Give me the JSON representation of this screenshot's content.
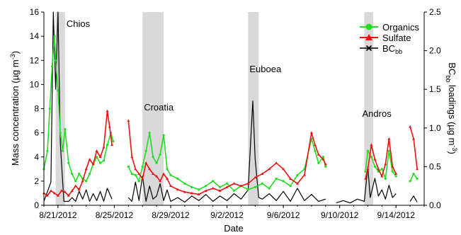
{
  "chart_data": {
    "type": "line",
    "title": "",
    "xlabel": "Date",
    "ylabel_left_main": "Mass concentration (µg m",
    "ylabel_left_sup": "-3",
    "ylabel_left_end": ")",
    "ylabel_right_pre": "BC",
    "ylabel_right_sub": "bb",
    "ylabel_right_mid": " loadings (µg m",
    "ylabel_right_sup": "-3",
    "ylabel_right_end": ")",
    "x_range": [
      "2012-08-20T00:00",
      "2012-09-16T00:00"
    ],
    "x_ticks": [
      "2012-08-21",
      "2012-08-25",
      "2012-08-29",
      "2012-09-02",
      "2012-09-06",
      "2012-09-10",
      "2012-09-14"
    ],
    "x_tick_labels": [
      "8/21/2012",
      "8/25/2012",
      "8/29/2012",
      "9/2/2012",
      "9/6/2012",
      "9/10/2012",
      "9/14/2012"
    ],
    "ylim_left": [
      0,
      16
    ],
    "y_ticks_left": [
      0,
      2,
      4,
      6,
      8,
      10,
      12,
      14,
      16
    ],
    "y_tick_labels_left": [
      "0",
      "2",
      "4",
      "6",
      "8",
      "10",
      "12",
      "14",
      "16"
    ],
    "ylim_right": [
      0,
      2.5
    ],
    "y_ticks_right": [
      0,
      0.5,
      1.0,
      1.5,
      2.0,
      2.5
    ],
    "y_tick_labels_right": [
      "0.0",
      "0.5",
      "1.0",
      "1.5",
      "2.0",
      "2.5"
    ],
    "legend_position": "top-right",
    "shaded_regions": [
      {
        "label": "Chios",
        "start": "2012-08-20T20:00",
        "end": "2012-08-21T12:00",
        "label_at": "2012-08-21T12:00"
      },
      {
        "label": "Croatia",
        "start": "2012-08-27T00:00",
        "end": "2012-08-28T12:00",
        "label_at": "2012-08-27T00:00"
      },
      {
        "label": "Euboea",
        "start": "2012-09-03T12:00",
        "end": "2012-09-04T06:00",
        "label_at": "2012-09-03T12:00"
      },
      {
        "label": "Andros",
        "start": "2012-09-11T18:00",
        "end": "2012-09-12T09:00",
        "label_at": "2012-09-11T12:00"
      }
    ],
    "series": [
      {
        "name": "Organics",
        "axis": "left",
        "color": "#22dd22",
        "marker": "circle",
        "points": [
          [
            "2012-08-20T00:00",
            3.0
          ],
          [
            "2012-08-20T06:00",
            4.5
          ],
          [
            "2012-08-20T10:00",
            8.0
          ],
          [
            "2012-08-20T14:00",
            11.5
          ],
          [
            "2012-08-20T18:00",
            14.0
          ],
          [
            "2012-08-20T20:00",
            12.0
          ],
          [
            "2012-08-21T00:00",
            9.5
          ],
          [
            "2012-08-21T04:00",
            6.0
          ],
          [
            "2012-08-21T08:00",
            4.5
          ],
          [
            "2012-08-21T12:00",
            6.3
          ],
          [
            "2012-08-21T18:00",
            3.5
          ],
          [
            "2012-08-22T00:00",
            2.6
          ],
          [
            "2012-08-22T06:00",
            2.0
          ],
          [
            "2012-08-22T12:00",
            2.6
          ],
          [
            "2012-08-22T18:00",
            2.2
          ],
          [
            "2012-08-23T00:00",
            2.0
          ],
          [
            "2012-08-23T06:00",
            2.6
          ],
          [
            "2012-08-23T12:00",
            3.4
          ],
          [
            "2012-08-23T18:00",
            4.0
          ],
          [
            "2012-08-24T00:00",
            3.5
          ],
          [
            "2012-08-24T06:00",
            3.7
          ],
          [
            "2012-08-24T12:00",
            5.0
          ],
          [
            "2012-08-24T18:00",
            6.0
          ],
          [
            "2012-08-24T22:00",
            5.3
          ],
          [
            "2012-08-25T00:00",
            null
          ],
          [
            "2012-08-26T00:00",
            3.2
          ],
          [
            "2012-08-26T06:00",
            2.6
          ],
          [
            "2012-08-26T12:00",
            2.5
          ],
          [
            "2012-08-26T18:00",
            2.0
          ],
          [
            "2012-08-27T00:00",
            3.2
          ],
          [
            "2012-08-27T06:00",
            4.5
          ],
          [
            "2012-08-27T12:00",
            6.0
          ],
          [
            "2012-08-27T18:00",
            4.0
          ],
          [
            "2012-08-28T00:00",
            3.5
          ],
          [
            "2012-08-28T06:00",
            4.2
          ],
          [
            "2012-08-28T12:00",
            5.8
          ],
          [
            "2012-08-28T18:00",
            3.0
          ],
          [
            "2012-08-29T00:00",
            2.5
          ],
          [
            "2012-08-29T12:00",
            2.2
          ],
          [
            "2012-08-30T00:00",
            1.8
          ],
          [
            "2012-08-30T12:00",
            1.5
          ],
          [
            "2012-08-31T00:00",
            1.3
          ],
          [
            "2012-08-31T12:00",
            1.6
          ],
          [
            "2012-09-01T00:00",
            2.0
          ],
          [
            "2012-09-01T12:00",
            1.5
          ],
          [
            "2012-09-02T00:00",
            1.8
          ],
          [
            "2012-09-02T12:00",
            1.2
          ],
          [
            "2012-09-03T00:00",
            1.6
          ],
          [
            "2012-09-03T12:00",
            1.3
          ],
          [
            "2012-09-04T00:00",
            1.5
          ],
          [
            "2012-09-04T12:00",
            1.8
          ],
          [
            "2012-09-05T00:00",
            1.4
          ],
          [
            "2012-09-05T12:00",
            2.2
          ],
          [
            "2012-09-06T00:00",
            2.0
          ],
          [
            "2012-09-06T12:00",
            1.6
          ],
          [
            "2012-09-07T00:00",
            2.5
          ],
          [
            "2012-09-07T12:00",
            3.0
          ],
          [
            "2012-09-08T00:00",
            5.5
          ],
          [
            "2012-09-08T06:00",
            4.5
          ],
          [
            "2012-09-08T12:00",
            3.5
          ],
          [
            "2012-09-08T20:00",
            4.0
          ],
          [
            "2012-09-09T00:00",
            3.2
          ],
          [
            "2012-09-09T06:00",
            null
          ],
          [
            "2012-09-11T20:00",
            2.8
          ],
          [
            "2012-09-12T00:00",
            4.5
          ],
          [
            "2012-09-12T06:00",
            4.0
          ],
          [
            "2012-09-12T12:00",
            3.2
          ],
          [
            "2012-09-12T18:00",
            2.8
          ],
          [
            "2012-09-13T00:00",
            3.0
          ],
          [
            "2012-09-13T06:00",
            2.2
          ],
          [
            "2012-09-13T12:00",
            4.5
          ],
          [
            "2012-09-13T18:00",
            2.8
          ],
          [
            "2012-09-14T00:00",
            2.4
          ],
          [
            "2012-09-14T06:00",
            null
          ],
          [
            "2012-09-15T00:00",
            2.0
          ],
          [
            "2012-09-15T06:00",
            2.6
          ],
          [
            "2012-09-15T12:00",
            2.2
          ]
        ]
      },
      {
        "name": "Sulfate",
        "axis": "left",
        "color": "#ee1111",
        "marker": "triangle",
        "points": [
          [
            "2012-08-20T00:00",
            1.0
          ],
          [
            "2012-08-20T06:00",
            0.8
          ],
          [
            "2012-08-20T12:00",
            1.2
          ],
          [
            "2012-08-20T18:00",
            1.0
          ],
          [
            "2012-08-21T00:00",
            0.8
          ],
          [
            "2012-08-21T06:00",
            1.2
          ],
          [
            "2012-08-21T12:00",
            1.1
          ],
          [
            "2012-08-21T18:00",
            0.8
          ],
          [
            "2012-08-22T00:00",
            1.2
          ],
          [
            "2012-08-22T06:00",
            1.6
          ],
          [
            "2012-08-22T12:00",
            1.3
          ],
          [
            "2012-08-22T18:00",
            2.0
          ],
          [
            "2012-08-23T00:00",
            3.0
          ],
          [
            "2012-08-23T06:00",
            3.8
          ],
          [
            "2012-08-23T12:00",
            3.4
          ],
          [
            "2012-08-23T18:00",
            4.5
          ],
          [
            "2012-08-24T00:00",
            4.0
          ],
          [
            "2012-08-24T06:00",
            4.8
          ],
          [
            "2012-08-24T12:00",
            7.8
          ],
          [
            "2012-08-24T16:00",
            6.5
          ],
          [
            "2012-08-24T20:00",
            5.0
          ],
          [
            "2012-08-25T00:00",
            null
          ],
          [
            "2012-08-26T00:00",
            7.0
          ],
          [
            "2012-08-26T06:00",
            4.0
          ],
          [
            "2012-08-26T12:00",
            3.0
          ],
          [
            "2012-08-26T18:00",
            2.6
          ],
          [
            "2012-08-27T00:00",
            2.2
          ],
          [
            "2012-08-27T06:00",
            3.5
          ],
          [
            "2012-08-27T12:00",
            3.0
          ],
          [
            "2012-08-27T18:00",
            2.6
          ],
          [
            "2012-08-28T00:00",
            2.4
          ],
          [
            "2012-08-28T06:00",
            2.0
          ],
          [
            "2012-08-28T12:00",
            2.6
          ],
          [
            "2012-08-28T18:00",
            2.2
          ],
          [
            "2012-08-29T00:00",
            1.6
          ],
          [
            "2012-08-29T12:00",
            1.3
          ],
          [
            "2012-08-30T00:00",
            1.1
          ],
          [
            "2012-08-30T12:00",
            1.0
          ],
          [
            "2012-08-31T00:00",
            0.9
          ],
          [
            "2012-08-31T12:00",
            1.2
          ],
          [
            "2012-09-01T00:00",
            1.4
          ],
          [
            "2012-09-01T12:00",
            1.2
          ],
          [
            "2012-09-02T00:00",
            1.5
          ],
          [
            "2012-09-02T12:00",
            1.8
          ],
          [
            "2012-09-03T00:00",
            1.6
          ],
          [
            "2012-09-03T12:00",
            1.8
          ],
          [
            "2012-09-04T00:00",
            2.3
          ],
          [
            "2012-09-04T12:00",
            2.6
          ],
          [
            "2012-09-05T00:00",
            3.0
          ],
          [
            "2012-09-05T12:00",
            3.5
          ],
          [
            "2012-09-06T00:00",
            3.0
          ],
          [
            "2012-09-06T12:00",
            2.2
          ],
          [
            "2012-09-07T00:00",
            1.8
          ],
          [
            "2012-09-07T12:00",
            2.5
          ],
          [
            "2012-09-08T00:00",
            6.0
          ],
          [
            "2012-09-08T06:00",
            5.0
          ],
          [
            "2012-09-08T12:00",
            4.2
          ],
          [
            "2012-09-08T20:00",
            3.8
          ],
          [
            "2012-09-09T00:00",
            3.4
          ],
          [
            "2012-09-09T06:00",
            null
          ],
          [
            "2012-09-11T20:00",
            2.2
          ],
          [
            "2012-09-12T00:00",
            3.0
          ],
          [
            "2012-09-12T06:00",
            5.0
          ],
          [
            "2012-09-12T12:00",
            3.8
          ],
          [
            "2012-09-12T18:00",
            3.0
          ],
          [
            "2012-09-13T00:00",
            2.4
          ],
          [
            "2012-09-13T06:00",
            3.4
          ],
          [
            "2012-09-13T12:00",
            5.5
          ],
          [
            "2012-09-13T18:00",
            3.2
          ],
          [
            "2012-09-14T00:00",
            2.6
          ],
          [
            "2012-09-14T06:00",
            null
          ],
          [
            "2012-09-15T00:00",
            6.5
          ],
          [
            "2012-09-15T06:00",
            5.5
          ],
          [
            "2012-09-15T12:00",
            3.0
          ]
        ]
      },
      {
        "name": "BC",
        "name_sub": "bb",
        "axis": "right",
        "color": "#000000",
        "marker": "x",
        "points": [
          [
            "2012-08-20T00:00",
            0.05
          ],
          [
            "2012-08-20T12:00",
            0.3
          ],
          [
            "2012-08-20T16:00",
            2.5
          ],
          [
            "2012-08-20T20:00",
            1.5
          ],
          [
            "2012-08-21T00:00",
            2.5
          ],
          [
            "2012-08-21T04:00",
            0.8
          ],
          [
            "2012-08-21T10:00",
            0.05
          ],
          [
            "2012-08-21T18:00",
            0.05
          ],
          [
            "2012-08-22T00:00",
            0.1
          ],
          [
            "2012-08-22T06:00",
            0.05
          ],
          [
            "2012-08-22T12:00",
            0.18
          ],
          [
            "2012-08-22T18:00",
            0.08
          ],
          [
            "2012-08-23T00:00",
            0.2
          ],
          [
            "2012-08-23T06:00",
            0.05
          ],
          [
            "2012-08-23T12:00",
            0.15
          ],
          [
            "2012-08-23T18:00",
            0.06
          ],
          [
            "2012-08-24T00:00",
            0.18
          ],
          [
            "2012-08-24T06:00",
            0.05
          ],
          [
            "2012-08-24T12:00",
            0.22
          ],
          [
            "2012-08-24T20:00",
            0.08
          ],
          [
            "2012-08-25T00:00",
            null
          ],
          [
            "2012-08-26T00:00",
            0.1
          ],
          [
            "2012-08-26T06:00",
            0.05
          ],
          [
            "2012-08-26T12:00",
            0.3
          ],
          [
            "2012-08-26T18:00",
            0.06
          ],
          [
            "2012-08-27T00:00",
            0.38
          ],
          [
            "2012-08-27T06:00",
            0.05
          ],
          [
            "2012-08-27T12:00",
            0.25
          ],
          [
            "2012-08-27T18:00",
            0.08
          ],
          [
            "2012-08-28T00:00",
            0.12
          ],
          [
            "2012-08-28T06:00",
            0.28
          ],
          [
            "2012-08-28T12:00",
            0.06
          ],
          [
            "2012-08-28T18:00",
            0.2
          ],
          [
            "2012-08-29T00:00",
            0.05
          ],
          [
            "2012-08-29T12:00",
            0.1
          ],
          [
            "2012-08-30T00:00",
            0.04
          ],
          [
            "2012-08-30T12:00",
            0.12
          ],
          [
            "2012-08-31T00:00",
            0.06
          ],
          [
            "2012-08-31T12:00",
            0.14
          ],
          [
            "2012-09-01T00:00",
            0.05
          ],
          [
            "2012-09-01T12:00",
            0.12
          ],
          [
            "2012-09-02T00:00",
            0.06
          ],
          [
            "2012-09-02T12:00",
            0.15
          ],
          [
            "2012-09-03T00:00",
            0.08
          ],
          [
            "2012-09-03T12:00",
            0.2
          ],
          [
            "2012-09-03T20:00",
            1.35
          ],
          [
            "2012-09-04T00:00",
            0.6
          ],
          [
            "2012-09-04T06:00",
            0.1
          ],
          [
            "2012-09-04T12:00",
            0.08
          ],
          [
            "2012-09-05T00:00",
            0.15
          ],
          [
            "2012-09-05T12:00",
            0.06
          ],
          [
            "2012-09-06T00:00",
            0.18
          ],
          [
            "2012-09-06T12:00",
            0.05
          ],
          [
            "2012-09-07T00:00",
            0.22
          ],
          [
            "2012-09-07T12:00",
            0.06
          ],
          [
            "2012-09-08T00:00",
            0.14
          ],
          [
            "2012-09-08T12:00",
            0.05
          ],
          [
            "2012-09-09T00:00",
            0.08
          ],
          [
            "2012-09-09T06:00",
            null
          ],
          [
            "2012-09-09T18:00",
            0.03
          ],
          [
            "2012-09-10T06:00",
            0.06
          ],
          [
            "2012-09-10T18:00",
            0.03
          ],
          [
            "2012-09-11T06:00",
            0.08
          ],
          [
            "2012-09-11T18:00",
            0.05
          ],
          [
            "2012-09-12T00:00",
            0.5
          ],
          [
            "2012-09-12T04:00",
            0.1
          ],
          [
            "2012-09-12T12:00",
            0.35
          ],
          [
            "2012-09-12T18:00",
            0.12
          ],
          [
            "2012-09-13T00:00",
            0.2
          ],
          [
            "2012-09-13T06:00",
            0.08
          ],
          [
            "2012-09-13T12:00",
            0.26
          ],
          [
            "2012-09-13T18:00",
            0.1
          ],
          [
            "2012-09-14T00:00",
            0.15
          ],
          [
            "2012-09-14T06:00",
            null
          ],
          [
            "2012-09-15T00:00",
            0.05
          ],
          [
            "2012-09-15T06:00",
            0.12
          ],
          [
            "2012-09-15T12:00",
            0.04
          ]
        ]
      }
    ]
  }
}
